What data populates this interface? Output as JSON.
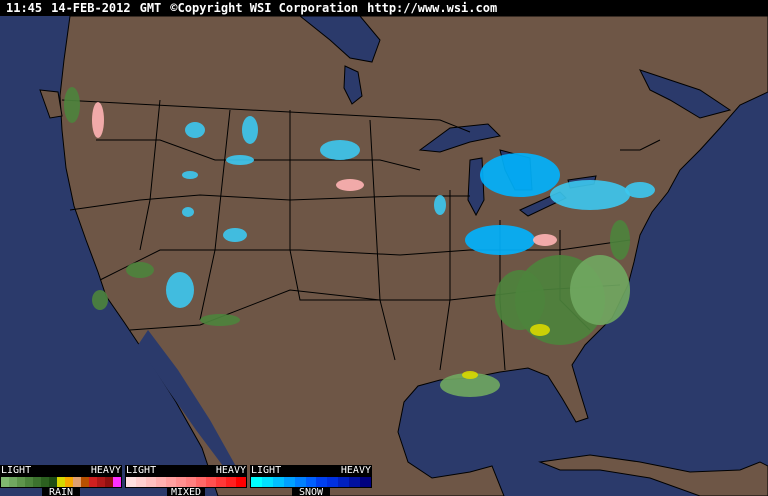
{
  "header": {
    "time": "11:45",
    "date": "14-FEB-2012",
    "zone": "GMT",
    "copyright": "©Copyright WSI Corporation",
    "url": "http://www.wsi.com"
  },
  "colors": {
    "ocean": "#2b3a6b",
    "land": "#6e5646",
    "border": "#000000"
  },
  "legend": [
    {
      "name": "RAIN",
      "light": "LIGHT",
      "heavy": "HEAVY",
      "colors": [
        "#80b870",
        "#70a860",
        "#5e964c",
        "#4c843c",
        "#3c722e",
        "#2c6020",
        "#1e4e14",
        "#d8d800",
        "#f8a800",
        "#e0a070",
        "#b85000",
        "#d02020",
        "#b01818",
        "#901010",
        "#ff30ff"
      ]
    },
    {
      "name": "MIXED",
      "light": "LIGHT",
      "heavy": "HEAVY",
      "colors": [
        "#ffe0e0",
        "#ffd0d0",
        "#ffc0c0",
        "#ffb0b0",
        "#ffa0a0",
        "#ff9090",
        "#ff8080",
        "#ff6868",
        "#ff5050",
        "#ff3838",
        "#ff2020",
        "#ff0000"
      ]
    },
    {
      "name": "SNOW",
      "light": "LIGHT",
      "heavy": "HEAVY",
      "colors": [
        "#00ffff",
        "#00e0ff",
        "#00c0ff",
        "#00a0ff",
        "#0080ff",
        "#0060ff",
        "#0040f0",
        "#0030e0",
        "#0020c0",
        "#0010a0",
        "#000080"
      ]
    }
  ]
}
